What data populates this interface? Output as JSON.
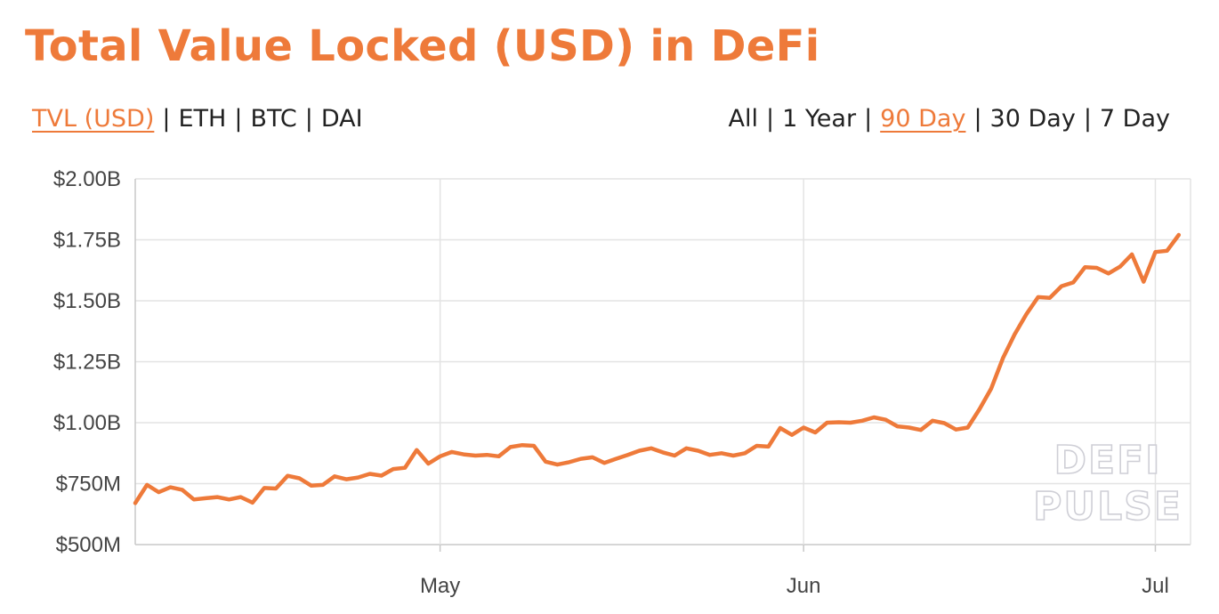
{
  "header": {
    "title": "Total Value Locked (USD) in DeFi"
  },
  "metric_toggle": {
    "options": [
      {
        "label": "TVL (USD)",
        "active": true
      },
      {
        "label": "ETH",
        "active": false
      },
      {
        "label": "BTC",
        "active": false
      },
      {
        "label": "DAI",
        "active": false
      }
    ]
  },
  "range_toggle": {
    "options": [
      {
        "label": "All",
        "active": false
      },
      {
        "label": "1 Year",
        "active": false
      },
      {
        "label": "90 Day",
        "active": true
      },
      {
        "label": "30 Day",
        "active": false
      },
      {
        "label": "7 Day",
        "active": false
      }
    ]
  },
  "watermark": {
    "line1": "DEFI",
    "line2": "PULSE"
  },
  "colors": {
    "accent": "#ee7a3a",
    "grid": "#e3e3e3",
    "text": "#222222"
  },
  "chart_data": {
    "type": "line",
    "title": "",
    "xlabel": "",
    "ylabel": "",
    "grid": true,
    "ylim": [
      500,
      2000
    ],
    "y_unit": "USD millions",
    "y_ticks": [
      {
        "value": 500,
        "label": "$500M"
      },
      {
        "value": 750,
        "label": "$750M"
      },
      {
        "value": 1000,
        "label": "$1.00B"
      },
      {
        "value": 1250,
        "label": "$1.25B"
      },
      {
        "value": 1500,
        "label": "$1.50B"
      },
      {
        "value": 1750,
        "label": "$1.75B"
      },
      {
        "value": 2000,
        "label": "$2.00B"
      }
    ],
    "x_ticks": [
      {
        "date": "May 1",
        "label": "May"
      },
      {
        "date": "Jun 1",
        "label": "Jun"
      },
      {
        "date": "Jul 1",
        "label": "Jul"
      }
    ],
    "xlim": [
      "Apr 5",
      "Jul 4"
    ],
    "series": [
      {
        "values": [
          [
            "Apr 5",
            670
          ],
          [
            "Apr 6",
            745
          ],
          [
            "Apr 7",
            715
          ],
          [
            "Apr 8",
            735
          ],
          [
            "Apr 9",
            725
          ],
          [
            "Apr 10",
            685
          ],
          [
            "Apr 11",
            690
          ],
          [
            "Apr 12",
            695
          ],
          [
            "Apr 13",
            685
          ],
          [
            "Apr 14",
            695
          ],
          [
            "Apr 15",
            672
          ],
          [
            "Apr 16",
            732
          ],
          [
            "Apr 17",
            730
          ],
          [
            "Apr 18",
            782
          ],
          [
            "Apr 19",
            772
          ],
          [
            "Apr 20",
            742
          ],
          [
            "Apr 21",
            745
          ],
          [
            "Apr 22",
            780
          ],
          [
            "Apr 23",
            768
          ],
          [
            "Apr 24",
            775
          ],
          [
            "Apr 25",
            790
          ],
          [
            "Apr 26",
            783
          ],
          [
            "Apr 27",
            810
          ],
          [
            "Apr 28",
            815
          ],
          [
            "Apr 29",
            888
          ],
          [
            "Apr 30",
            832
          ],
          [
            "May 1",
            862
          ],
          [
            "May 2",
            880
          ],
          [
            "May 3",
            870
          ],
          [
            "May 4",
            865
          ],
          [
            "May 5",
            868
          ],
          [
            "May 6",
            862
          ],
          [
            "May 7",
            900
          ],
          [
            "May 8",
            908
          ],
          [
            "May 9",
            905
          ],
          [
            "May 10",
            840
          ],
          [
            "May 11",
            828
          ],
          [
            "May 12",
            838
          ],
          [
            "May 13",
            852
          ],
          [
            "May 14",
            858
          ],
          [
            "May 15",
            835
          ],
          [
            "May 16",
            852
          ],
          [
            "May 17",
            868
          ],
          [
            "May 18",
            885
          ],
          [
            "May 19",
            895
          ],
          [
            "May 20",
            878
          ],
          [
            "May 21",
            865
          ],
          [
            "May 22",
            895
          ],
          [
            "May 23",
            885
          ],
          [
            "May 24",
            868
          ],
          [
            "May 25",
            875
          ],
          [
            "May 26",
            865
          ],
          [
            "May 27",
            875
          ],
          [
            "May 28",
            905
          ],
          [
            "May 29",
            902
          ],
          [
            "May 30",
            978
          ],
          [
            "May 31",
            950
          ],
          [
            "Jun 1",
            980
          ],
          [
            "Jun 2",
            960
          ],
          [
            "Jun 3",
            1000
          ],
          [
            "Jun 4",
            1002
          ],
          [
            "Jun 5",
            1000
          ],
          [
            "Jun 6",
            1008
          ],
          [
            "Jun 7",
            1022
          ],
          [
            "Jun 8",
            1012
          ],
          [
            "Jun 9",
            985
          ],
          [
            "Jun 10",
            980
          ],
          [
            "Jun 11",
            970
          ],
          [
            "Jun 12",
            1008
          ],
          [
            "Jun 13",
            998
          ],
          [
            "Jun 14",
            972
          ],
          [
            "Jun 15",
            980
          ],
          [
            "Jun 16",
            1055
          ],
          [
            "Jun 17",
            1140
          ],
          [
            "Jun 18",
            1265
          ],
          [
            "Jun 19",
            1362
          ],
          [
            "Jun 20",
            1445
          ],
          [
            "Jun 21",
            1515
          ],
          [
            "Jun 22",
            1512
          ],
          [
            "Jun 23",
            1560
          ],
          [
            "Jun 24",
            1575
          ],
          [
            "Jun 25",
            1638
          ],
          [
            "Jun 26",
            1635
          ],
          [
            "Jun 27",
            1612
          ],
          [
            "Jun 28",
            1640
          ],
          [
            "Jun 29",
            1690
          ],
          [
            "Jun 30",
            1578
          ],
          [
            "Jul 1",
            1700
          ],
          [
            "Jul 2",
            1705
          ],
          [
            "Jul 3",
            1770
          ]
        ]
      }
    ]
  }
}
